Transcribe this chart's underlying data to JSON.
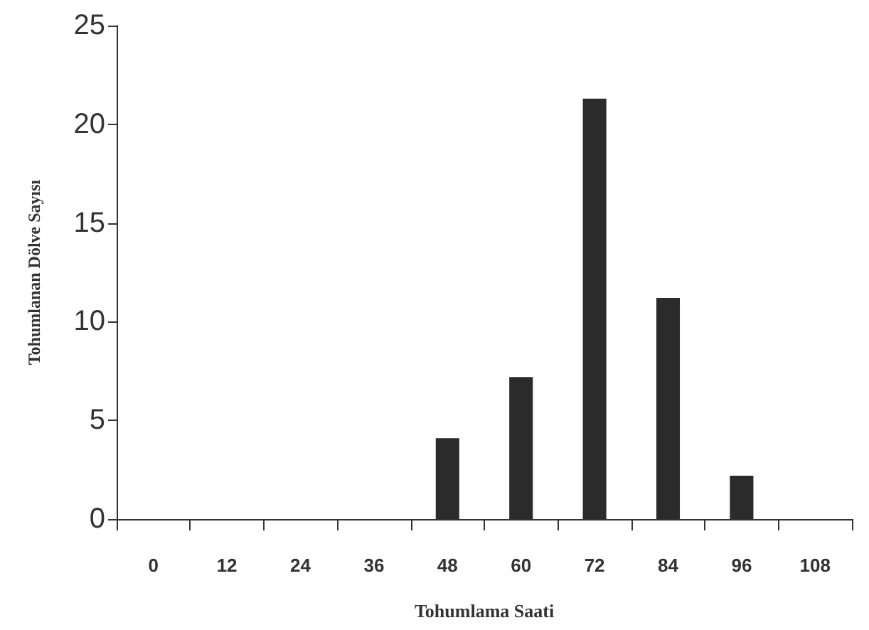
{
  "chart_data": {
    "type": "bar",
    "xlabel": "Tohumlama Saati",
    "ylabel": "Tohumlanan Dölve Sayısı",
    "categories": [
      "0",
      "12",
      "24",
      "36",
      "48",
      "60",
      "72",
      "84",
      "96",
      "108"
    ],
    "values": [
      0,
      0,
      0,
      0,
      4.1,
      7.2,
      21.3,
      11.2,
      2.2,
      0
    ],
    "color": "#2b2b2b",
    "ylim": [
      0,
      25
    ],
    "yticks": [
      0,
      5,
      10,
      15,
      20,
      25
    ],
    "grid": false
  }
}
